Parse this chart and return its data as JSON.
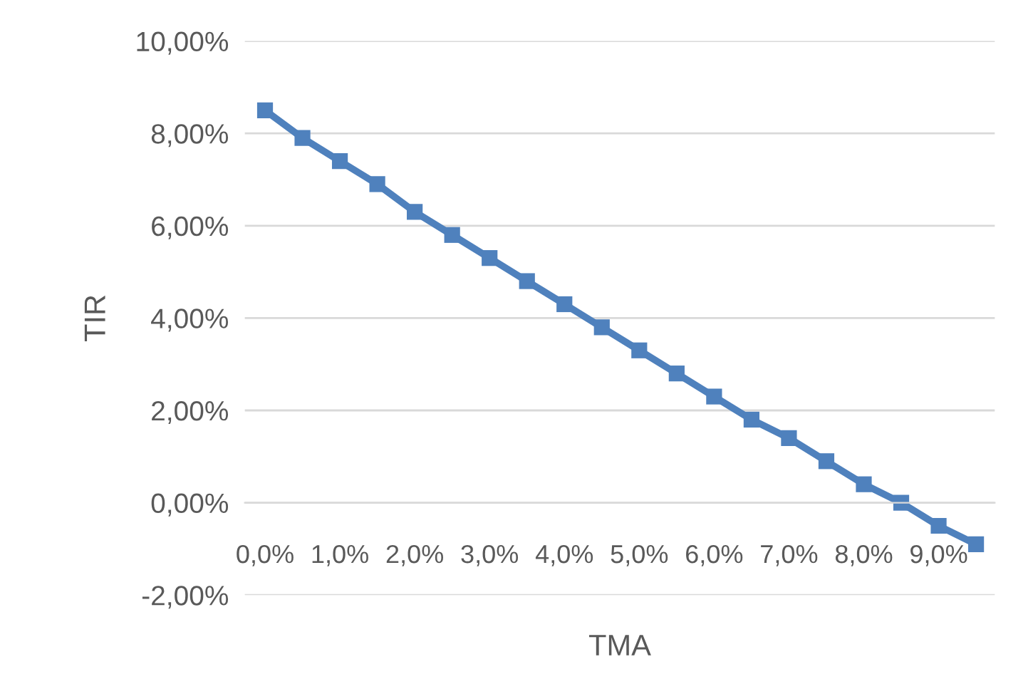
{
  "chart_data": {
    "type": "line",
    "xlabel": "TMA",
    "ylabel": "TIR",
    "x": [
      0,
      0.5,
      1,
      1.5,
      2,
      2.5,
      3,
      3.5,
      4,
      4.5,
      5,
      5.5,
      6,
      6.5,
      7,
      7.5,
      8,
      8.5,
      9,
      9.5
    ],
    "series": [
      {
        "color": "#4f81bd",
        "values": [
          8.5,
          7.9,
          7.4,
          6.9,
          6.3,
          5.8,
          5.3,
          4.8,
          4.3,
          3.8,
          3.3,
          2.8,
          2.3,
          1.8,
          1.4,
          0.9,
          0.4,
          0.0,
          -0.5,
          -0.9
        ]
      }
    ],
    "xlim": [
      -0.27,
      9.75
    ],
    "xticks": [
      {
        "value": 0,
        "label": "0,0%"
      },
      {
        "value": 1,
        "label": "1,0%"
      },
      {
        "value": 2,
        "label": "2,0%"
      },
      {
        "value": 3,
        "label": "3,0%"
      },
      {
        "value": 4,
        "label": "4,0%"
      },
      {
        "value": 5,
        "label": "5,0%"
      },
      {
        "value": 6,
        "label": "6,0%"
      },
      {
        "value": 7,
        "label": "7,0%"
      },
      {
        "value": 8,
        "label": "8,0%"
      },
      {
        "value": 9,
        "label": "9,0%"
      }
    ],
    "ylim": [
      -2,
      10
    ],
    "yticks": [
      {
        "value": -2,
        "label": "-2,00%"
      },
      {
        "value": 0,
        "label": "0,00%"
      },
      {
        "value": 2,
        "label": "2,00%"
      },
      {
        "value": 4,
        "label": "4,00%"
      },
      {
        "value": 6,
        "label": "6,00%"
      },
      {
        "value": 8,
        "label": "8,00%"
      },
      {
        "value": 10,
        "label": "10,00%"
      }
    ],
    "grid": "y",
    "marker": "square",
    "line_style": "solid",
    "legend": false
  }
}
